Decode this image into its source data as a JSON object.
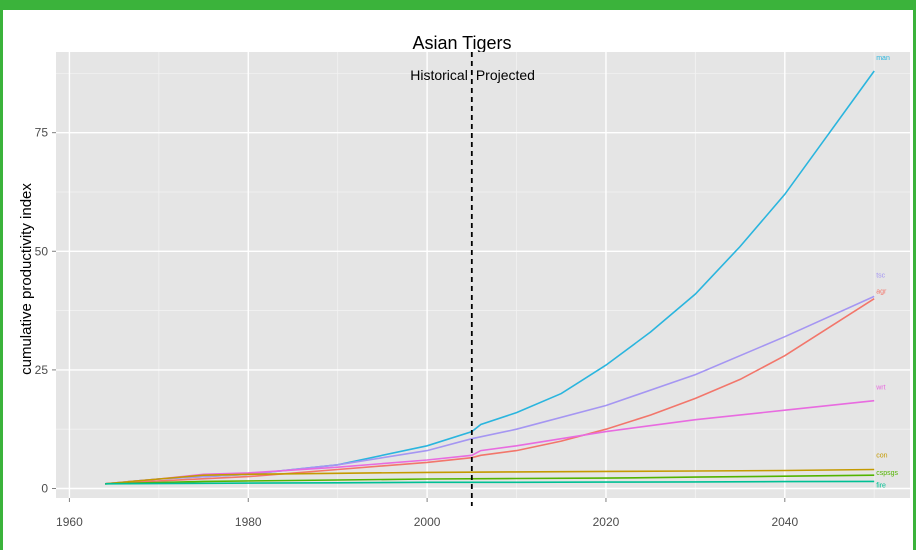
{
  "chart_data": {
    "type": "line",
    "title": "Asian Tigers",
    "xlabel": "",
    "ylabel": "cumulative productivity index",
    "xlim": [
      1958.5,
      2054
    ],
    "ylim": [
      -2,
      92
    ],
    "x_ticks": [
      1960,
      1980,
      2000,
      2020,
      2040
    ],
    "y_ticks": [
      0,
      25,
      50,
      75
    ],
    "grid": true,
    "legend": "none",
    "divider": {
      "x": 2005,
      "left_label": "Historical",
      "right_label": "Projected"
    },
    "series": [
      {
        "name": "man",
        "color": "#2ab5de",
        "points": [
          [
            1964,
            1
          ],
          [
            1970,
            2
          ],
          [
            1980,
            3
          ],
          [
            1990,
            5
          ],
          [
            2000,
            9
          ],
          [
            2005,
            12
          ],
          [
            2006,
            13.5
          ],
          [
            2010,
            16
          ],
          [
            2015,
            20
          ],
          [
            2020,
            26
          ],
          [
            2025,
            33
          ],
          [
            2030,
            41
          ],
          [
            2035,
            51
          ],
          [
            2040,
            62
          ],
          [
            2045,
            75
          ],
          [
            2050,
            88
          ]
        ]
      },
      {
        "name": "tsc",
        "color": "#a596f2",
        "points": [
          [
            1964,
            1
          ],
          [
            1970,
            2
          ],
          [
            1980,
            3
          ],
          [
            1990,
            5
          ],
          [
            2000,
            8
          ],
          [
            2005,
            10.5
          ],
          [
            2010,
            12.5
          ],
          [
            2020,
            17.5
          ],
          [
            2030,
            24
          ],
          [
            2040,
            32
          ],
          [
            2050,
            40.5
          ]
        ]
      },
      {
        "name": "agr",
        "color": "#f2766b",
        "points": [
          [
            1964,
            1
          ],
          [
            1970,
            1.6
          ],
          [
            1980,
            2.5
          ],
          [
            1990,
            4
          ],
          [
            2000,
            5.5
          ],
          [
            2005,
            6.5
          ],
          [
            2006,
            7
          ],
          [
            2010,
            8
          ],
          [
            2015,
            10
          ],
          [
            2020,
            12.5
          ],
          [
            2025,
            15.5
          ],
          [
            2030,
            19
          ],
          [
            2035,
            23
          ],
          [
            2040,
            28
          ],
          [
            2045,
            34
          ],
          [
            2050,
            40
          ]
        ]
      },
      {
        "name": "wrt",
        "color": "#e86be0",
        "points": [
          [
            1964,
            1
          ],
          [
            1970,
            2
          ],
          [
            1975,
            3
          ],
          [
            1980,
            3.3
          ],
          [
            1990,
            4.5
          ],
          [
            2000,
            6
          ],
          [
            2005,
            7
          ],
          [
            2006,
            8
          ],
          [
            2010,
            9
          ],
          [
            2020,
            12
          ],
          [
            2030,
            14.5
          ],
          [
            2040,
            16.5
          ],
          [
            2050,
            18.5
          ]
        ]
      },
      {
        "name": "con",
        "color": "#c49a00",
        "points": [
          [
            1964,
            1
          ],
          [
            1970,
            2
          ],
          [
            1975,
            2.8
          ],
          [
            1980,
            3
          ],
          [
            1990,
            3.2
          ],
          [
            2000,
            3.4
          ],
          [
            2010,
            3.5
          ],
          [
            2020,
            3.6
          ],
          [
            2030,
            3.7
          ],
          [
            2040,
            3.8
          ],
          [
            2050,
            4
          ]
        ]
      },
      {
        "name": "cspsgs",
        "color": "#53b400",
        "points": [
          [
            1964,
            1
          ],
          [
            1975,
            1.5
          ],
          [
            1990,
            1.8
          ],
          [
            2000,
            2
          ],
          [
            2010,
            2.1
          ],
          [
            2020,
            2.2
          ],
          [
            2030,
            2.4
          ],
          [
            2040,
            2.6
          ],
          [
            2050,
            2.8
          ]
        ]
      },
      {
        "name": "fire",
        "color": "#00c094",
        "points": [
          [
            1964,
            1
          ],
          [
            1975,
            1.1
          ],
          [
            1990,
            1.2
          ],
          [
            2000,
            1.3
          ],
          [
            2010,
            1.3
          ],
          [
            2020,
            1.35
          ],
          [
            2030,
            1.4
          ],
          [
            2040,
            1.45
          ],
          [
            2050,
            1.5
          ]
        ]
      }
    ]
  }
}
